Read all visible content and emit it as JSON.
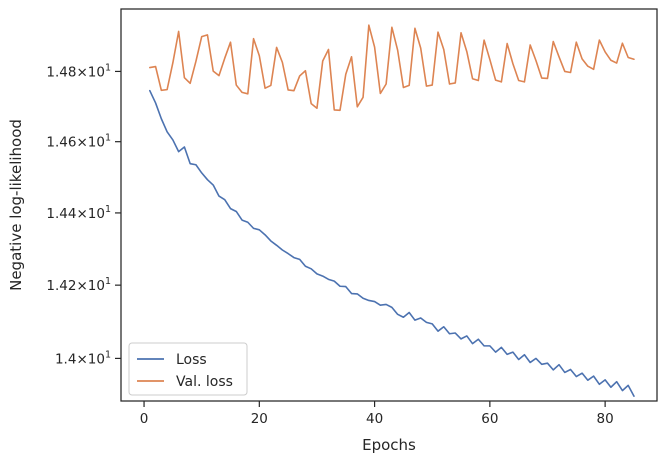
{
  "chart_data": {
    "type": "line",
    "xlabel": "Epochs",
    "ylabel": "Negative log-likelihood",
    "yscale": "log",
    "xlim": [
      -4,
      89
    ],
    "ylim": [
      13.885,
      14.98
    ],
    "grid": false,
    "legend_position": "lower-left",
    "x_ticks": [
      {
        "value": 0,
        "label": "0"
      },
      {
        "value": 20,
        "label": "20"
      },
      {
        "value": 40,
        "label": "40"
      },
      {
        "value": 60,
        "label": "60"
      },
      {
        "value": 80,
        "label": "80"
      }
    ],
    "y_ticks": [
      {
        "value": 14.0,
        "mantissa": "1.4",
        "base": "10",
        "exp": "1"
      },
      {
        "value": 14.2,
        "mantissa": "1.42",
        "base": "10",
        "exp": "1"
      },
      {
        "value": 14.4,
        "mantissa": "1.44",
        "base": "10",
        "exp": "1"
      },
      {
        "value": 14.6,
        "mantissa": "1.46",
        "base": "10",
        "exp": "1"
      },
      {
        "value": 14.8,
        "mantissa": "1.48",
        "base": "10",
        "exp": "1"
      }
    ],
    "series": [
      {
        "name": "Loss",
        "color": "#4c72b0",
        "x": [
          1,
          2,
          3,
          4,
          5,
          6,
          7,
          8,
          9,
          10,
          11,
          12,
          13,
          14,
          15,
          16,
          17,
          18,
          19,
          20,
          21,
          22,
          23,
          24,
          25,
          26,
          27,
          28,
          29,
          30,
          31,
          32,
          33,
          34,
          35,
          36,
          37,
          38,
          39,
          40,
          41,
          42,
          43,
          44,
          45,
          46,
          47,
          48,
          49,
          50,
          51,
          52,
          53,
          54,
          55,
          56,
          57,
          58,
          59,
          60,
          61,
          62,
          63,
          64,
          65,
          66,
          67,
          68,
          69,
          70,
          71,
          72,
          73,
          74,
          75,
          76,
          77,
          78,
          79,
          80,
          81,
          82,
          83,
          84,
          85
        ],
        "values": [
          14.745,
          14.71,
          14.665,
          14.628,
          14.605,
          14.572,
          14.585,
          14.538,
          14.535,
          14.512,
          14.493,
          14.478,
          14.447,
          14.437,
          14.412,
          14.404,
          14.38,
          14.374,
          14.357,
          14.353,
          14.339,
          14.322,
          14.31,
          14.297,
          14.287,
          14.276,
          14.271,
          14.252,
          14.245,
          14.231,
          14.225,
          14.216,
          14.211,
          14.197,
          14.196,
          14.177,
          14.176,
          14.164,
          14.158,
          14.155,
          14.145,
          14.147,
          14.139,
          14.12,
          14.112,
          14.125,
          14.104,
          14.11,
          14.098,
          14.094,
          14.074,
          14.086,
          14.067,
          14.069,
          14.053,
          14.061,
          14.04,
          14.052,
          14.034,
          14.034,
          14.017,
          14.03,
          14.011,
          14.017,
          13.997,
          14.01,
          13.989,
          14.0,
          13.984,
          13.987,
          13.969,
          13.983,
          13.962,
          13.97,
          13.951,
          13.96,
          13.941,
          13.952,
          13.93,
          13.942,
          13.922,
          13.937,
          13.913,
          13.927,
          13.898
        ]
      },
      {
        "name": "Val. loss",
        "color": "#dd8452",
        "x": [
          1,
          2,
          3,
          4,
          5,
          6,
          7,
          8,
          9,
          10,
          11,
          12,
          13,
          14,
          15,
          16,
          17,
          18,
          19,
          20,
          21,
          22,
          23,
          24,
          25,
          26,
          27,
          28,
          29,
          30,
          31,
          32,
          33,
          34,
          35,
          36,
          37,
          38,
          39,
          40,
          41,
          42,
          43,
          44,
          45,
          46,
          47,
          48,
          49,
          50,
          51,
          52,
          53,
          54,
          55,
          56,
          57,
          58,
          59,
          60,
          61,
          62,
          63,
          64,
          65,
          66,
          67,
          68,
          69,
          70,
          71,
          72,
          73,
          74,
          75,
          76,
          77,
          78,
          79,
          80,
          81,
          82,
          83,
          84,
          85
        ],
        "values": [
          14.811,
          14.814,
          14.746,
          14.748,
          14.825,
          14.915,
          14.782,
          14.766,
          14.829,
          14.9,
          14.905,
          14.801,
          14.788,
          14.838,
          14.884,
          14.761,
          14.74,
          14.736,
          14.894,
          14.845,
          14.752,
          14.76,
          14.869,
          14.826,
          14.747,
          14.745,
          14.787,
          14.802,
          14.708,
          14.695,
          14.83,
          14.863,
          14.69,
          14.689,
          14.792,
          14.842,
          14.699,
          14.726,
          14.933,
          14.87,
          14.737,
          14.764,
          14.927,
          14.861,
          14.754,
          14.76,
          14.924,
          14.867,
          14.758,
          14.761,
          14.913,
          14.863,
          14.764,
          14.767,
          14.911,
          14.857,
          14.779,
          14.774,
          14.89,
          14.834,
          14.775,
          14.77,
          14.88,
          14.822,
          14.774,
          14.77,
          14.876,
          14.831,
          14.781,
          14.78,
          14.886,
          14.842,
          14.8,
          14.797,
          14.884,
          14.836,
          14.815,
          14.806,
          14.89,
          14.856,
          14.832,
          14.824,
          14.881,
          14.84,
          14.835
        ]
      }
    ]
  }
}
